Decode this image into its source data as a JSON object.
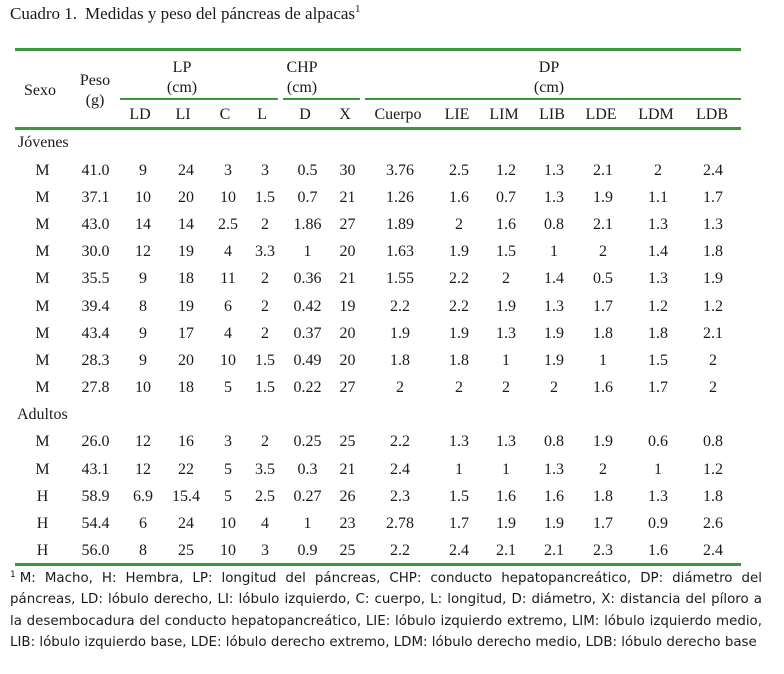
{
  "caption": {
    "number": "Cuadro 1.",
    "text": "Medidas y peso del páncreas de alpacas",
    "note_marker": "1"
  },
  "header": {
    "sexo": "Sexo",
    "peso": "Peso",
    "peso_unit": "(g)",
    "lp": "LP",
    "lp_unit": "(cm)",
    "chp": "CHP",
    "chp_unit": "(cm)",
    "dp": "DP",
    "dp_unit": "(cm)",
    "sub_columns": [
      "LD",
      "LI",
      "C",
      "L",
      "D",
      "X",
      "Cuerpo",
      "LIE",
      "LIM",
      "LIB",
      "LDE",
      "LDM",
      "LDB"
    ]
  },
  "groups": [
    {
      "label": "Jóvenes",
      "rows": [
        [
          "M",
          "41.0",
          "9",
          "24",
          "3",
          "3",
          "0.5",
          "30",
          "3.76",
          "2.5",
          "1.2",
          "1.3",
          "2.1",
          "2",
          "2.4"
        ],
        [
          "M",
          "37.1",
          "10",
          "20",
          "10",
          "1.5",
          "0.7",
          "21",
          "1.26",
          "1.6",
          "0.7",
          "1.3",
          "1.9",
          "1.1",
          "1.7"
        ],
        [
          "M",
          "43.0",
          "14",
          "14",
          "2.5",
          "2",
          "1.86",
          "27",
          "1.89",
          "2",
          "1.6",
          "0.8",
          "2.1",
          "1.3",
          "1.3"
        ],
        [
          "M",
          "30.0",
          "12",
          "19",
          "4",
          "3.3",
          "1",
          "20",
          "1.63",
          "1.9",
          "1.5",
          "1",
          "2",
          "1.4",
          "1.8"
        ],
        [
          "M",
          "35.5",
          "9",
          "18",
          "11",
          "2",
          "0.36",
          "21",
          "1.55",
          "2.2",
          "2",
          "1.4",
          "0.5",
          "1.3",
          "1.9"
        ],
        [
          "M",
          "39.4",
          "8",
          "19",
          "6",
          "2",
          "0.42",
          "19",
          "2.2",
          "2.2",
          "1.9",
          "1.3",
          "1.7",
          "1.2",
          "1.2"
        ],
        [
          "M",
          "43.4",
          "9",
          "17",
          "4",
          "2",
          "0.37",
          "20",
          "1.9",
          "1.9",
          "1.3",
          "1.9",
          "1.8",
          "1.8",
          "2.1"
        ],
        [
          "M",
          "28.3",
          "9",
          "20",
          "10",
          "1.5",
          "0.49",
          "20",
          "1.8",
          "1.8",
          "1",
          "1.9",
          "1",
          "1.5",
          "2"
        ],
        [
          "M",
          "27.8",
          "10",
          "18",
          "5",
          "1.5",
          "0.22",
          "27",
          "2",
          "2",
          "2",
          "2",
          "1.6",
          "1.7",
          "2"
        ]
      ]
    },
    {
      "label": "Adultos",
      "rows": [
        [
          "M",
          "26.0",
          "12",
          "16",
          "3",
          "2",
          "0.25",
          "25",
          "2.2",
          "1.3",
          "1.3",
          "0.8",
          "1.9",
          "0.6",
          "0.8"
        ],
        [
          "M",
          "43.1",
          "12",
          "22",
          "5",
          "3.5",
          "0.3",
          "21",
          "2.4",
          "1",
          "1",
          "1.3",
          "2",
          "1",
          "1.2"
        ],
        [
          "H",
          "58.9",
          "6.9",
          "15.4",
          "5",
          "2.5",
          "0.27",
          "26",
          "2.3",
          "1.5",
          "1.6",
          "1.6",
          "1.8",
          "1.3",
          "1.8"
        ],
        [
          "H",
          "54.4",
          "6",
          "24",
          "10",
          "4",
          "1",
          "23",
          "2.78",
          "1.7",
          "1.9",
          "1.9",
          "1.7",
          "0.9",
          "2.6"
        ],
        [
          "H",
          "56.0",
          "8",
          "25",
          "10",
          "3",
          "0.9",
          "25",
          "2.2",
          "2.4",
          "2.1",
          "2.1",
          "2.3",
          "1.6",
          "2.4"
        ]
      ]
    }
  ],
  "footnote": {
    "marker": "1",
    "text": "M: Macho, H: Hembra, LP: longitud del páncreas, CHP: conducto hepatopancreático, DP: diámetro del páncreas, LD: lóbulo derecho, LI: lóbulo izquierdo, C: cuerpo, L: longitud, D: diámetro, X: distancia del píloro a la desembocadura del conducto hepatopancreático, LIE: lóbulo izquierdo extremo, LIM: lóbulo izquierdo medio, LIB: lóbulo izquierdo base, LDE: lóbulo derecho extremo, LDM: lóbulo derecho medio, LDB: lóbulo derecho base"
  },
  "colors": {
    "rule": "#3a9a3a",
    "text": "#1a1a1a"
  }
}
